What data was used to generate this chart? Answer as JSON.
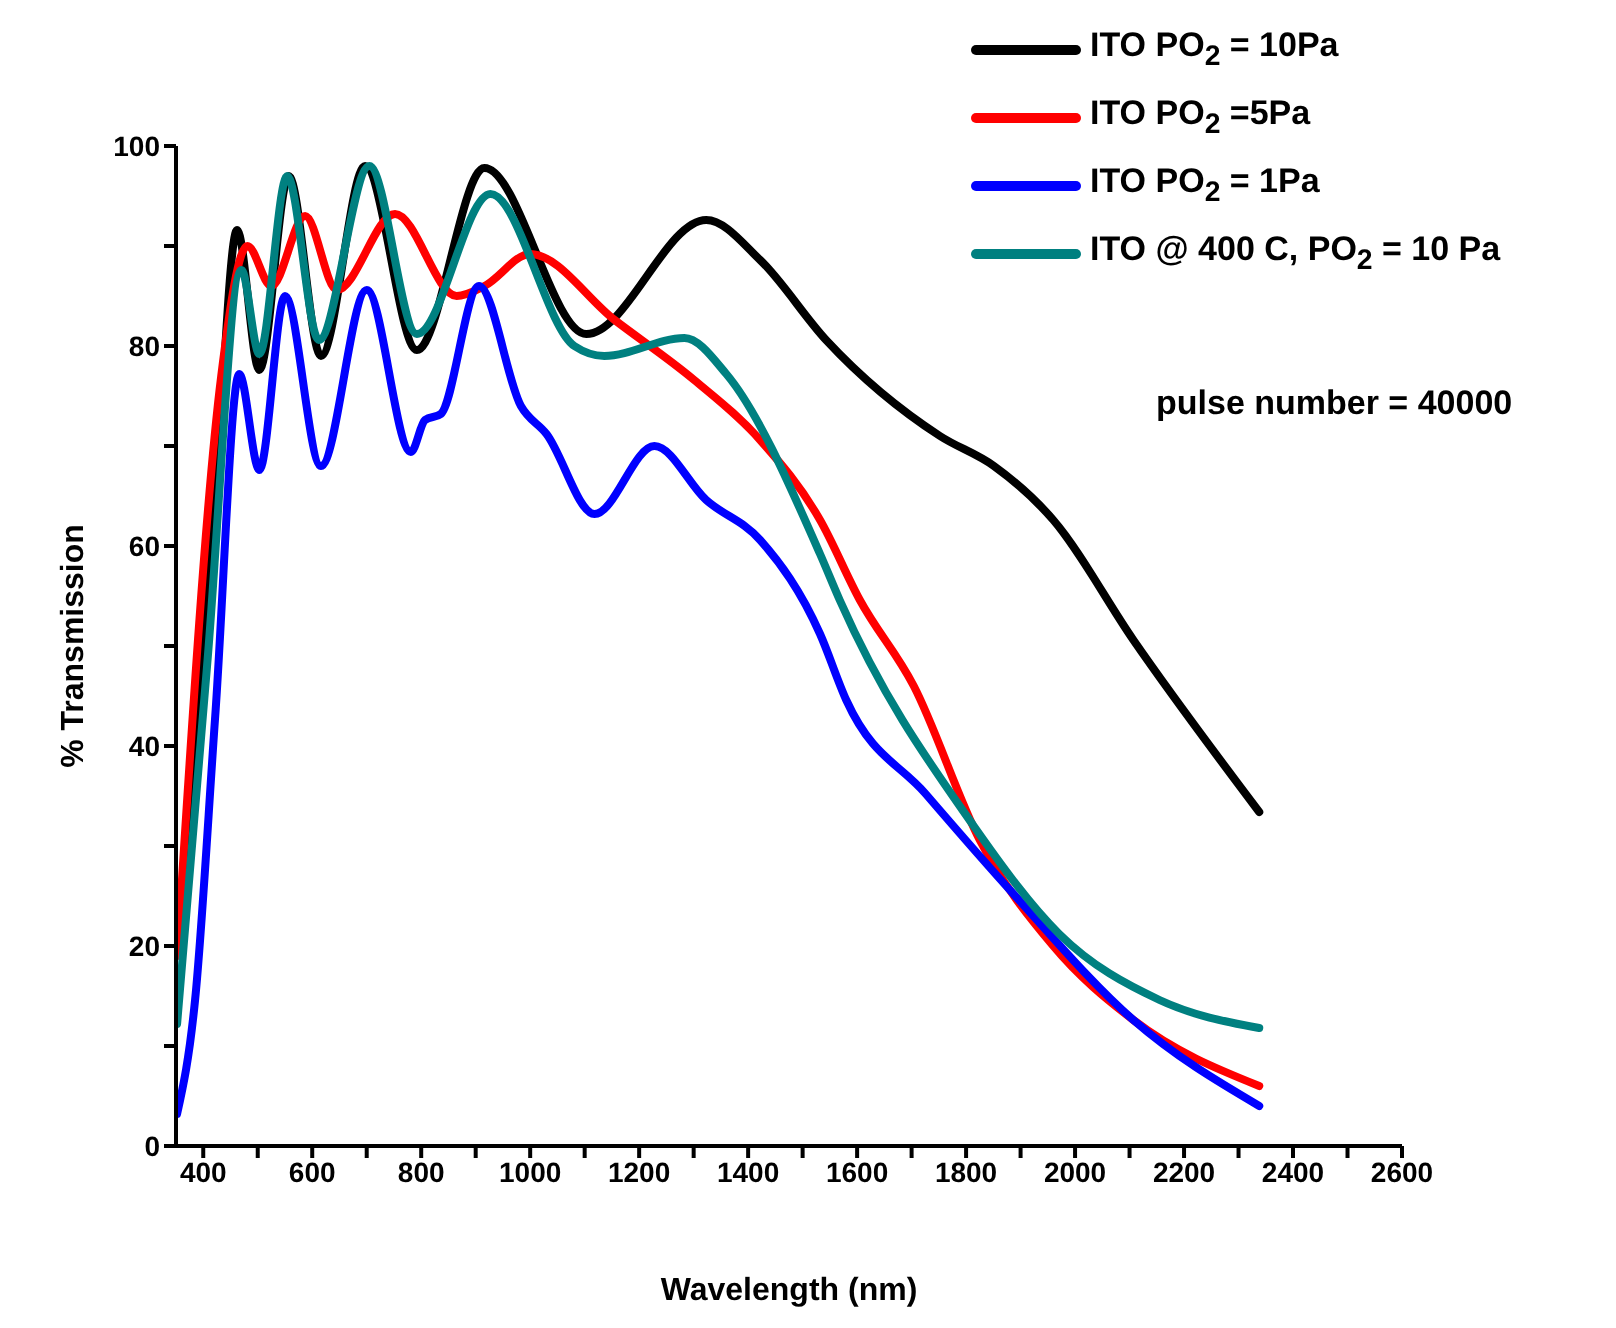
{
  "chart_data": {
    "type": "line",
    "xlabel": "Wavelength (nm)",
    "ylabel": "% Transmission",
    "annotations": [
      "pulse number = 40000"
    ],
    "xlim": [
      350,
      2600
    ],
    "xticks": [
      400,
      {
        "value": 500,
        "label": null
      },
      600,
      {
        "value": 700,
        "label": null
      },
      800,
      {
        "value": 900,
        "label": null
      },
      1000,
      {
        "value": 1100,
        "label": null
      },
      1200,
      {
        "value": 1300,
        "label": null
      },
      1400,
      {
        "value": 1500,
        "label": null
      },
      1600,
      {
        "value": 1700,
        "label": null
      },
      1800,
      {
        "value": 1900,
        "label": null
      },
      2000,
      {
        "value": 2100,
        "label": null
      },
      2200,
      {
        "value": 2300,
        "label": null
      },
      2400,
      {
        "value": 2500,
        "label": null
      },
      2600
    ],
    "ylim": [
      0,
      100
    ],
    "yticks": [
      0,
      {
        "value": 10,
        "label": null
      },
      20,
      {
        "value": 30,
        "label": null
      },
      40,
      {
        "value": 50,
        "label": null
      },
      60,
      {
        "value": 70,
        "label": null
      },
      80,
      {
        "value": 90,
        "label": null
      },
      100
    ],
    "grid": false,
    "legend": "top right",
    "marker": "none",
    "line_style": "solid",
    "series": [
      {
        "name": "ITO PO$_{2}$ = 10Pa",
        "color": "#000000",
        "x": [
          360,
          422,
          462,
          503,
          557,
          616,
          697,
          792,
          916,
          1103,
          1323,
          1422,
          1543,
          1752,
          1851,
          1960,
          2107,
          2338
        ],
        "values": [
          20,
          64,
          91.6,
          77.6,
          97,
          79,
          98,
          79.6,
          97.8,
          81.2,
          92.6,
          88.6,
          80.6,
          71,
          68,
          62.6,
          50.6,
          33.4
        ]
      },
      {
        "name": "ITO PO$_{2}$ =5Pa",
        "color": "#ff0000",
        "x": [
          352,
          433,
          481,
          525,
          587,
          645,
          752,
          865,
          916,
          1000,
          1155,
          1301,
          1422,
          1532,
          1605,
          1704,
          1825,
          1960,
          2107,
          2338
        ],
        "values": [
          19,
          77,
          90,
          86,
          93,
          85.6,
          93.2,
          85,
          86,
          89.2,
          82.6,
          76.6,
          70.6,
          62.6,
          54.6,
          46,
          30.6,
          20,
          12.6,
          6
        ]
      },
      {
        "name": "ITO PO$_{2}$ = 1Pa",
        "color": "#0000ff",
        "x": [
          352,
          385,
          422,
          466,
          503,
          550,
          616,
          700,
          781,
          807,
          836,
          906,
          983,
          1030,
          1118,
          1228,
          1323,
          1422,
          1532,
          1580,
          1726,
          1887,
          2107,
          2338
        ],
        "values": [
          3.2,
          14.6,
          43,
          77.2,
          67.6,
          85,
          68,
          85.6,
          69.4,
          72.6,
          73.2,
          86,
          74,
          71.2,
          63.2,
          70,
          64.6,
          60.6,
          51.2,
          44.6,
          35.2,
          25.2,
          12.6,
          4
        ]
      },
      {
        "name": "ITO @ 400 C,  PO$_{2}$ = 10 Pa",
        "color": "#008080",
        "x": [
          352,
          407,
          470,
          503,
          554,
          612,
          705,
          792,
          927,
          1081,
          1136,
          1283,
          1360,
          1532,
          1568,
          1814,
          1971,
          2155,
          2338
        ],
        "values": [
          12.2,
          48,
          87.6,
          79.2,
          97,
          80.6,
          98,
          81.2,
          95.2,
          80,
          79,
          80.8,
          77.2,
          59.2,
          54.6,
          32,
          21.2,
          14.6,
          11.8
        ]
      }
    ]
  }
}
